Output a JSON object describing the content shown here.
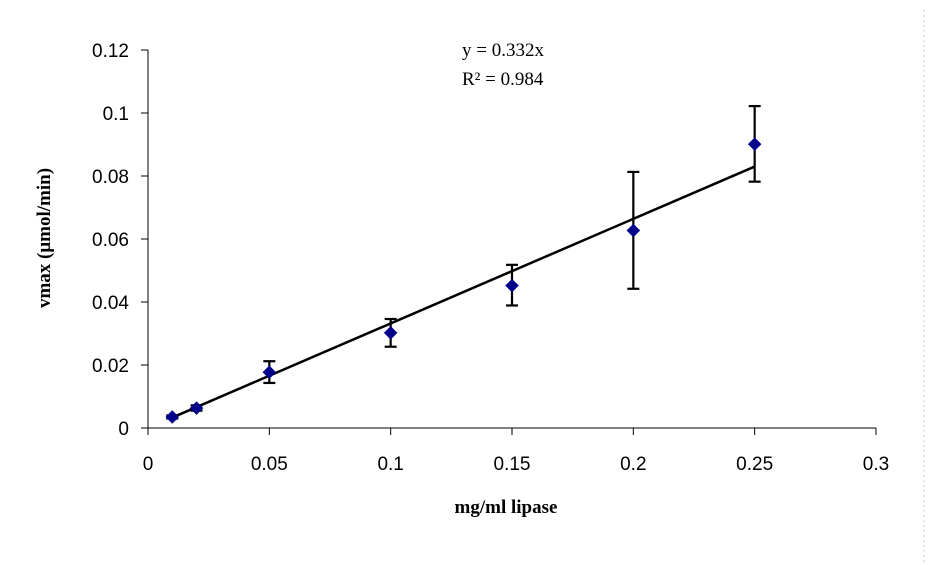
{
  "chart_data": {
    "type": "scatter",
    "xlabel": "mg/ml lipase",
    "ylabel": "vmax (μmol/min)",
    "xlim": [
      0,
      0.3
    ],
    "ylim": [
      0,
      0.12
    ],
    "x_ticks": [
      0,
      0.05,
      0.1,
      0.15,
      0.2,
      0.25,
      0.3
    ],
    "x_tick_labels": [
      "0",
      "0.05",
      "0.1",
      "0.15",
      "0.2",
      "0.25",
      "0.3"
    ],
    "y_ticks": [
      0,
      0.02,
      0.04,
      0.06,
      0.08,
      0.1,
      0.12
    ],
    "y_tick_labels": [
      "0",
      "0.02",
      "0.04",
      "0.06",
      "0.08",
      "0.1",
      "0.12"
    ],
    "grid": false,
    "series": [
      {
        "marker": "diamond",
        "color": "#00008B",
        "x": [
          0.01,
          0.02,
          0.05,
          0.1,
          0.15,
          0.2,
          0.25
        ],
        "y": [
          0.0035,
          0.0063,
          0.0177,
          0.0302,
          0.0452,
          0.0627,
          0.0901
        ],
        "err_high": [
          0.004,
          0.0072,
          0.0212,
          0.0346,
          0.0518,
          0.0813,
          0.1022
        ],
        "err_low": [
          0.003,
          0.0055,
          0.0143,
          0.0258,
          0.0389,
          0.0442,
          0.0782
        ]
      }
    ],
    "trendline": {
      "slope": 0.332,
      "intercept": 0,
      "x_range": [
        0.01,
        0.25
      ],
      "color": "#000000"
    },
    "annotations": {
      "equation": "y = 0.332x",
      "r_squared": "R² = 0.984"
    }
  }
}
